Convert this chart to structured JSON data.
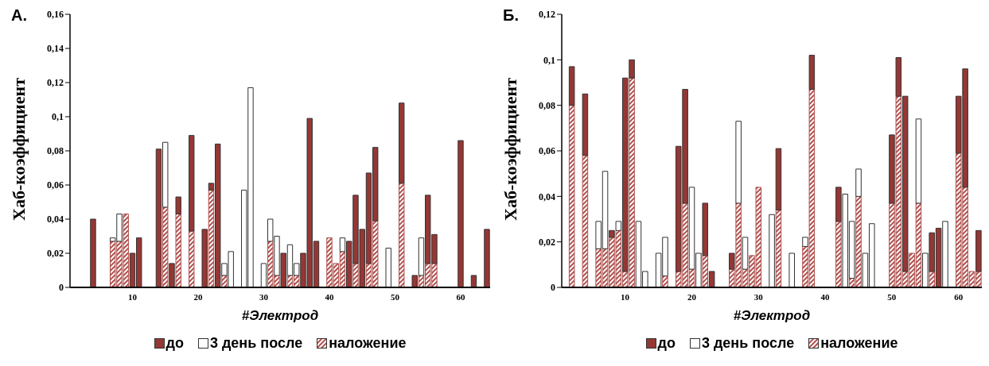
{
  "chart_data": [
    {
      "type": "bar",
      "title": "А.",
      "xlabel": "#Электрод",
      "ylabel": "Хаб-коэффициент",
      "stacked": true,
      "legend": "bottom",
      "x": [
        4,
        7,
        8,
        9,
        10,
        11,
        14,
        15,
        16,
        17,
        19,
        21,
        22,
        23,
        24,
        25,
        27,
        28,
        30,
        31,
        32,
        33,
        34,
        35,
        36,
        37,
        38,
        40,
        41,
        42,
        43,
        44,
        45,
        46,
        47,
        49,
        51,
        53,
        54,
        55,
        56,
        60,
        62,
        64
      ],
      "xlim": [
        0.5,
        64.5
      ],
      "xticks": [
        10,
        20,
        30,
        40,
        50,
        60
      ],
      "ylim": [
        0,
        0.16
      ],
      "yticks": [
        0,
        {
          "value": 0.02,
          "label": "0,02"
        },
        {
          "value": 0.04,
          "label": "0,04"
        },
        {
          "value": 0.06,
          "label": "0,06"
        },
        {
          "value": 0.08,
          "label": "0,08"
        },
        {
          "value": 0.1,
          "label": "0,1"
        },
        {
          "value": 0.12,
          "label": "0,12"
        },
        {
          "value": 0.14,
          "label": "0,14"
        },
        {
          "value": 0.16,
          "label": "0,16"
        }
      ],
      "series": [
        {
          "name": "наложение",
          "color": "#b0504d",
          "values": [
            null,
            0.027,
            0.027,
            0.043,
            null,
            null,
            null,
            0.047,
            null,
            0.043,
            0.033,
            null,
            0.057,
            null,
            0.007,
            null,
            null,
            null,
            null,
            0.027,
            0.007,
            null,
            0.007,
            0.007,
            null,
            null,
            null,
            0.029,
            0.014,
            0.021,
            null,
            0.014,
            null,
            0.014,
            0.039,
            null,
            0.061,
            null,
            0.007,
            0.014,
            0.014,
            null,
            null,
            null
          ]
        },
        {
          "name": "до",
          "color": "#953735",
          "values": [
            0.04,
            null,
            null,
            null,
            0.02,
            0.029,
            0.081,
            null,
            0.014,
            0.01,
            0.056,
            0.034,
            0.004,
            0.084,
            null,
            null,
            null,
            null,
            null,
            null,
            null,
            0.02,
            null,
            null,
            0.02,
            0.099,
            0.027,
            null,
            null,
            null,
            0.027,
            0.04,
            0.034,
            0.053,
            0.043,
            null,
            0.047,
            0.007,
            null,
            0.04,
            0.017,
            0.086,
            0.007,
            0.034
          ]
        },
        {
          "name": "3 день после",
          "color": "#ffffff",
          "values": [
            null,
            0.002,
            0.016,
            null,
            null,
            null,
            null,
            0.038,
            null,
            null,
            null,
            null,
            null,
            null,
            0.007,
            0.021,
            0.057,
            0.117,
            0.014,
            0.013,
            0.023,
            null,
            0.018,
            0.007,
            null,
            null,
            null,
            null,
            null,
            0.008,
            null,
            null,
            null,
            null,
            null,
            0.023,
            null,
            null,
            0.022,
            null,
            null,
            null,
            null,
            null
          ]
        }
      ]
    },
    {
      "type": "bar",
      "title": "Б.",
      "xlabel": "#Электрод",
      "ylabel": "Хаб-коэффициент",
      "stacked": true,
      "legend": "bottom",
      "x": [
        2,
        4,
        6,
        7,
        8,
        9,
        10,
        11,
        12,
        13,
        15,
        16,
        18,
        19,
        20,
        21,
        22,
        23,
        26,
        27,
        28,
        29,
        30,
        32,
        33,
        35,
        37,
        38,
        42,
        43,
        44,
        45,
        46,
        47,
        50,
        51,
        52,
        53,
        54,
        55,
        56,
        57,
        58,
        60,
        61,
        62,
        63
      ],
      "xlim": [
        0.5,
        63.5
      ],
      "xticks": [
        10,
        20,
        30,
        40,
        50,
        60
      ],
      "ylim": [
        0,
        0.12
      ],
      "yticks": [
        0,
        {
          "value": 0.02,
          "label": "0,02"
        },
        {
          "value": 0.04,
          "label": "0,04"
        },
        {
          "value": 0.06,
          "label": "0,06"
        },
        {
          "value": 0.08,
          "label": "0,08"
        },
        {
          "value": 0.1,
          "label": "0,1"
        },
        {
          "value": 0.12,
          "label": "0,12"
        }
      ],
      "series": [
        {
          "name": "наложение",
          "color": "#b0504d",
          "values": [
            0.08,
            0.058,
            0.017,
            0.017,
            0.022,
            0.025,
            0.007,
            0.092,
            null,
            null,
            null,
            0.005,
            0.007,
            0.037,
            0.008,
            null,
            0.014,
            null,
            0.008,
            0.037,
            0.008,
            0.014,
            0.044,
            null,
            0.034,
            null,
            0.018,
            0.087,
            0.029,
            null,
            0.004,
            0.04,
            null,
            null,
            0.037,
            0.084,
            0.007,
            0.015,
            0.037,
            null,
            0.007,
            null,
            null,
            0.059,
            0.044,
            0.007,
            0.007
          ]
        },
        {
          "name": "до",
          "color": "#953735",
          "values": [
            0.017,
            0.027,
            null,
            null,
            0.003,
            null,
            0.085,
            0.008,
            null,
            null,
            null,
            null,
            0.055,
            0.05,
            null,
            null,
            0.023,
            0.007,
            0.007,
            null,
            null,
            null,
            null,
            null,
            0.027,
            null,
            null,
            0.015,
            0.015,
            null,
            null,
            null,
            null,
            null,
            0.03,
            0.017,
            0.077,
            null,
            null,
            null,
            0.017,
            0.026,
            null,
            0.025,
            0.052,
            null,
            0.018
          ]
        },
        {
          "name": "3 день после",
          "color": "#ffffff",
          "values": [
            null,
            null,
            0.012,
            0.034,
            null,
            0.004,
            null,
            null,
            0.029,
            0.007,
            0.015,
            0.017,
            null,
            null,
            0.036,
            0.015,
            null,
            null,
            null,
            0.036,
            0.014,
            null,
            null,
            0.032,
            null,
            0.015,
            0.004,
            null,
            null,
            0.041,
            0.025,
            0.012,
            0.015,
            0.028,
            null,
            null,
            null,
            null,
            0.037,
            0.015,
            null,
            null,
            0.029,
            null,
            null,
            null,
            null
          ]
        }
      ]
    }
  ]
}
